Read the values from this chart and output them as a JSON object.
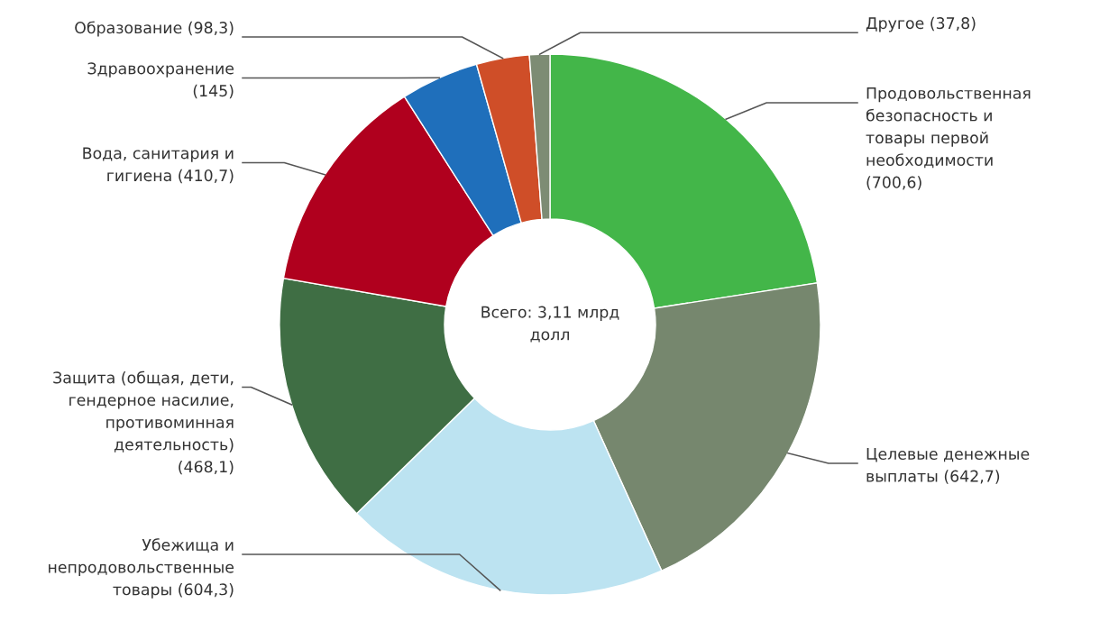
{
  "chart_data": {
    "type": "donut",
    "categories": [
      "Продовольственная безопасность и товары первой необходимости",
      "Целевые денежные выплаты",
      "Убежища и непродовольственные товары",
      "Защита (общая, дети, гендерное насилие, противоминная деятельность)",
      "Вода, санитария и гигиена",
      "Здравоохранение",
      "Образование",
      "Другое"
    ],
    "values": [
      700.6,
      642.7,
      604.3,
      468.1,
      410.7,
      145,
      98.3,
      37.8
    ],
    "value_labels": [
      "(700,6)",
      "(642,7)",
      "(604,3)",
      "(468,1)",
      "(410,7)",
      "(145)",
      "(98,3)",
      "(37,8)"
    ],
    "colors": [
      "#43b649",
      "#76876e",
      "#bce3f1",
      "#3f6e44",
      "#b0001e",
      "#1f6fbb",
      "#cf4e28",
      "#7d8c74"
    ],
    "annotations": [
      "Всего: 3,11 млрд долл"
    ]
  }
}
